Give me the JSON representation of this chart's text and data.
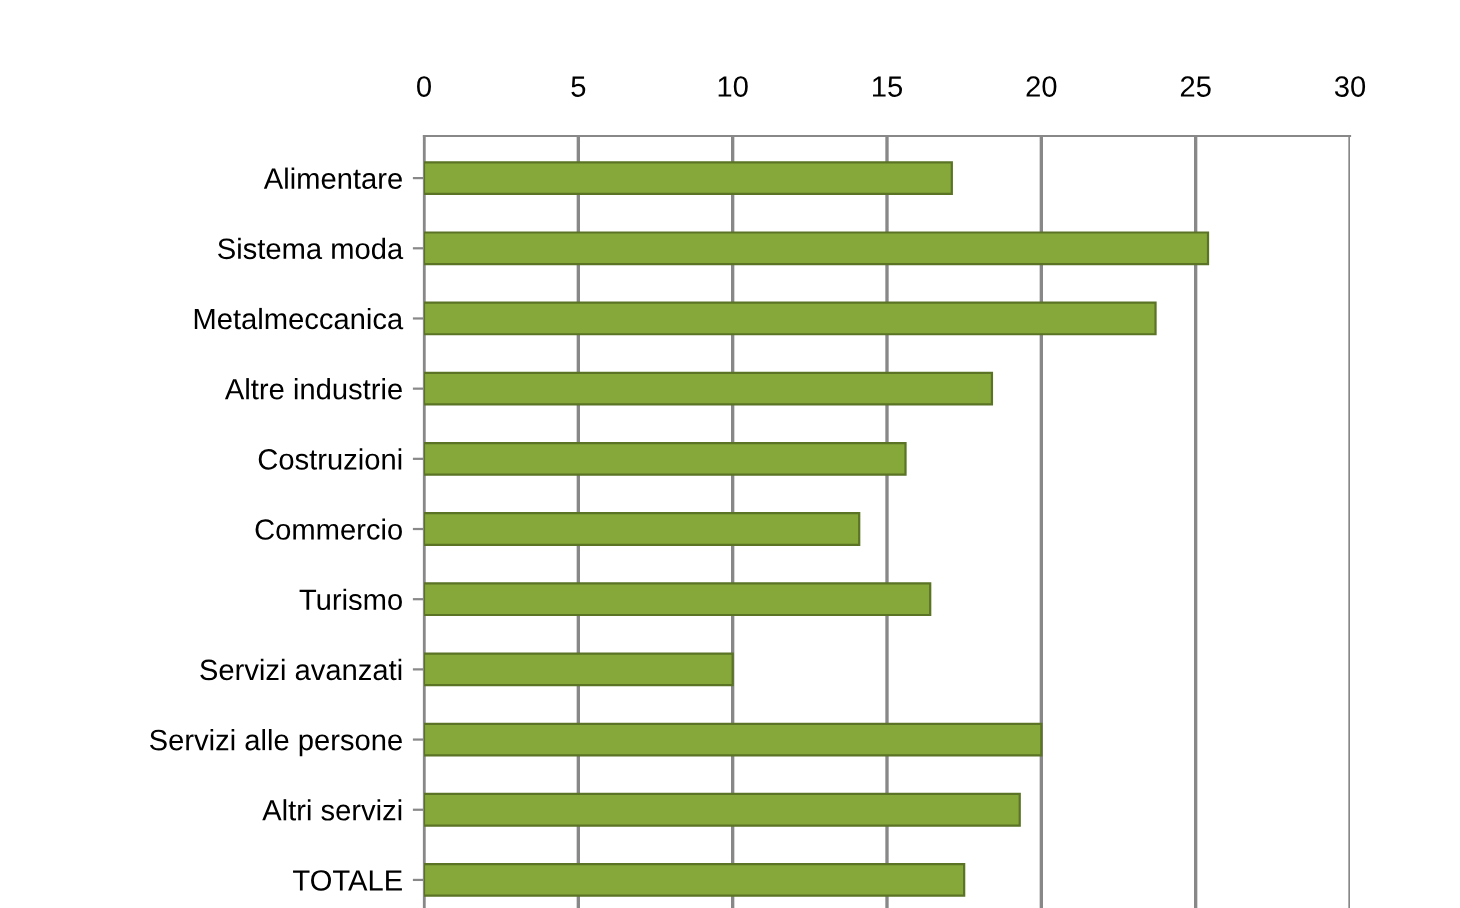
{
  "chart_data": {
    "type": "bar",
    "orientation": "horizontal",
    "categories": [
      "Alimentare",
      "Sistema moda",
      "Metalmeccanica",
      "Altre industrie",
      "Costruzioni",
      "Commercio",
      "Turismo",
      "Servizi avanzati",
      "Servizi alle persone",
      "Altri servizi",
      "TOTALE"
    ],
    "values": [
      17.1,
      25.4,
      23.7,
      18.4,
      15.6,
      14.1,
      16.4,
      10.0,
      20.0,
      19.3,
      17.5
    ],
    "color": "#86a83a",
    "xlim": [
      0,
      30
    ],
    "xticks": [
      0,
      5,
      10,
      15,
      20,
      25,
      30
    ],
    "grid": "x"
  }
}
